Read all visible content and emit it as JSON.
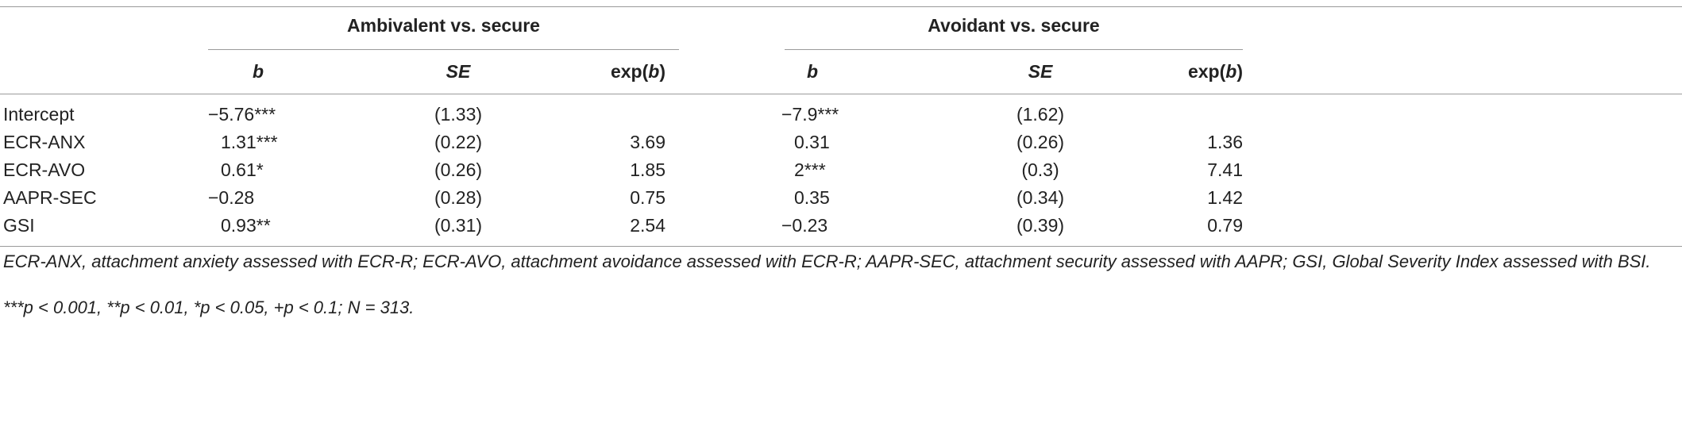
{
  "table": {
    "group_headers": [
      "Ambivalent vs. secure",
      "Avoidant vs. secure"
    ],
    "columns": [
      "b",
      "SE",
      "exp(b)",
      "b",
      "SE",
      "exp(b)"
    ],
    "rows": [
      [
        "Intercept",
        "−5.76***",
        "(1.33)",
        "",
        "−7.9***",
        "(1.62)",
        ""
      ],
      [
        "ECR-ANX",
        "1.31***",
        "(0.22)",
        "3.69",
        "0.31",
        "(0.26)",
        "1.36"
      ],
      [
        "ECR-AVO",
        "0.61*",
        "(0.26)",
        "1.85",
        "2***",
        "(0.3)",
        "7.41"
      ],
      [
        "AAPR-SEC",
        "−0.28",
        "(0.28)",
        "0.75",
        "0.35",
        "(0.34)",
        "1.42"
      ],
      [
        "GSI",
        "0.93**",
        "(0.31)",
        "2.54",
        "−0.23",
        "(0.39)",
        "0.79"
      ]
    ],
    "footnotes": [
      "ECR-ANX, attachment anxiety assessed with ECR-R; ECR-AVO, attachment avoidance assessed with ECR-R; AAPR-SEC, attachment security assessed with AAPR; GSI, Global Severity Index assessed with BSI.",
      "***p < 0.001, **p < 0.01, *p < 0.05, +p < 0.1; N = 313."
    ]
  }
}
